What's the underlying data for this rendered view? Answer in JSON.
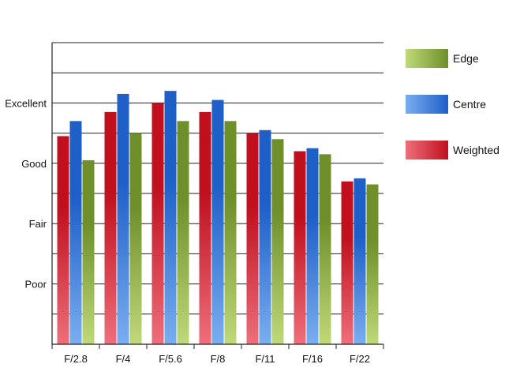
{
  "chart_data": {
    "type": "bar",
    "title": "",
    "xlabel": "",
    "ylabel": "",
    "categories": [
      "F/2.8",
      "F/4",
      "F/5.6",
      "F/8",
      "F/11",
      "F/16",
      "F/22"
    ],
    "y_tick_labels": [
      {
        "value": 2,
        "label": "Poor"
      },
      {
        "value": 4,
        "label": "Fair"
      },
      {
        "value": 6,
        "label": "Good"
      },
      {
        "value": 8,
        "label": "Excellent"
      }
    ],
    "ylim": [
      0,
      10
    ],
    "grid": "horizontal, every 1 unit",
    "legend_position": "right",
    "series": [
      {
        "name": "Weighted",
        "color": "#c0101e",
        "color_light": "#ee6f7b",
        "values": [
          6.9,
          7.7,
          8.0,
          7.7,
          7.0,
          6.4,
          5.4
        ]
      },
      {
        "name": "Centre",
        "color": "#1e5fc8",
        "color_light": "#7aaef0",
        "values": [
          7.4,
          8.3,
          8.4,
          8.1,
          7.1,
          6.5,
          5.5
        ]
      },
      {
        "name": "Edge",
        "color": "#6e8f2a",
        "color_light": "#c0d97a",
        "values": [
          6.1,
          7.0,
          7.4,
          7.4,
          6.8,
          6.3,
          5.3
        ]
      }
    ],
    "legend_order": [
      "Edge",
      "Centre",
      "Weighted"
    ]
  }
}
